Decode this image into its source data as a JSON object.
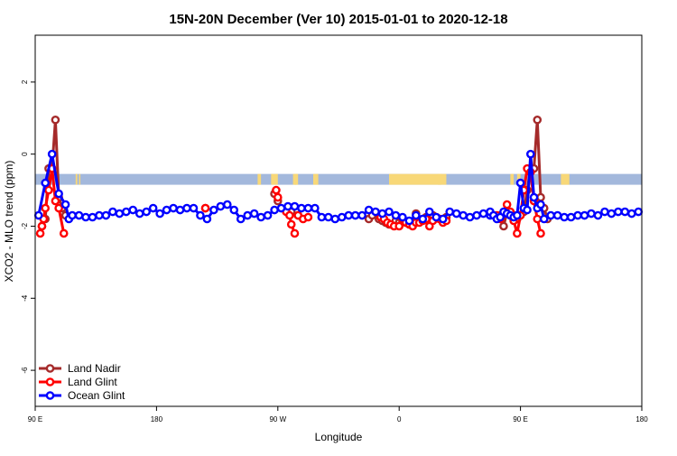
{
  "chart_data": {
    "type": "line",
    "title": "15N-20N December (Ver 10)   2015-01-01 to 2020-12-18",
    "xlabel": "Longitude",
    "ylabel": "XCO2 - MLO trend (ppm)",
    "xlim": [
      90,
      450
    ],
    "ylim": [
      -7,
      3.3
    ],
    "x_ticks": [
      {
        "value": 90,
        "label": "90 E"
      },
      {
        "value": 162,
        "label": "180"
      },
      {
        "value": 234,
        "label": "90 W"
      },
      {
        "value": 306,
        "label": "0"
      },
      {
        "value": 378,
        "label": "90 E"
      },
      {
        "value": 450,
        "label": "180"
      }
    ],
    "y_ticks": [
      {
        "value": 2,
        "label": "2"
      },
      {
        "value": 0,
        "label": "0"
      },
      {
        "value": -2,
        "label": "-2"
      },
      {
        "value": -4,
        "label": "-4"
      },
      {
        "value": -6,
        "label": "-6"
      }
    ],
    "land_band": {
      "y_range": [
        -0.85,
        -0.55
      ],
      "ocean_color": "#a3b8dc",
      "land_color": "#f8d878",
      "land_segments": [
        [
          116,
          116.8
        ],
        [
          115,
          114
        ],
        [
          222,
          224
        ],
        [
          230,
          234
        ],
        [
          243,
          245
        ],
        [
          244,
          246
        ],
        [
          255,
          258
        ],
        [
          300,
          331
        ],
        [
          329,
          334
        ],
        [
          372,
          374
        ],
        [
          376,
          378
        ],
        [
          384,
          386
        ],
        [
          402,
          407
        ]
      ]
    },
    "legend": {
      "position": "bottom-left",
      "entries": [
        {
          "name": "Land Nadir",
          "color": "#a52a2a"
        },
        {
          "name": "Land Glint",
          "color": "#ff0000"
        },
        {
          "name": "Ocean Glint",
          "color": "#0000ff"
        }
      ]
    },
    "series": [
      {
        "name": "Land Nadir",
        "color": "#a52a2a",
        "segments": [
          [
            [
              94,
              -2.0
            ],
            [
              96,
              -1.8
            ],
            [
              98,
              -0.4
            ],
            [
              100,
              -0.4
            ],
            [
              102,
              0.95
            ],
            [
              104,
              -1.2
            ],
            [
              106,
              -1.5
            ],
            [
              108,
              -1.7
            ]
          ],
          [
            [
              191,
              -1.5
            ]
          ],
          [
            [
              232,
              -1.1
            ],
            [
              234,
              -1.3
            ]
          ],
          [
            [
              242,
              -1.6
            ],
            [
              246,
              -1.7
            ]
          ],
          [
            [
              288,
              -1.8
            ],
            [
              290,
              -1.7
            ],
            [
              294,
              -1.8
            ],
            [
              296,
              -1.85
            ],
            [
              298,
              -1.9
            ],
            [
              300,
              -1.95
            ],
            [
              304,
              -1.85
            ],
            [
              306,
              -1.9
            ],
            [
              308,
              -1.85
            ],
            [
              310,
              -1.9
            ],
            [
              312,
              -1.95
            ],
            [
              314,
              -1.9
            ],
            [
              316,
              -1.65
            ],
            [
              318,
              -1.85
            ],
            [
              320,
              -1.8
            ],
            [
              322,
              -1.75
            ],
            [
              324,
              -1.9
            ],
            [
              326,
              -1.7
            ],
            [
              328,
              -1.75
            ],
            [
              330,
              -1.8
            ],
            [
              332,
              -1.8
            ],
            [
              334,
              -1.75
            ]
          ],
          [
            [
              366,
              -1.7
            ],
            [
              368,
              -2.0
            ],
            [
              370,
              -1.6
            ],
            [
              372,
              -1.7
            ],
            [
              374,
              -1.7
            ],
            [
              376,
              -1.8
            ],
            [
              378,
              -1.7
            ],
            [
              380,
              -1.6
            ],
            [
              382,
              -1.0
            ],
            [
              384,
              -0.4
            ],
            [
              386,
              -0.4
            ],
            [
              388,
              0.95
            ],
            [
              390,
              -1.2
            ],
            [
              392,
              -1.5
            ],
            [
              394,
              -1.8
            ]
          ]
        ]
      },
      {
        "name": "Land Glint",
        "color": "#ff0000",
        "segments": [
          [
            [
              93,
              -2.2
            ],
            [
              94,
              -2.0
            ],
            [
              95,
              -1.8
            ],
            [
              96,
              -1.5
            ],
            [
              98,
              -1.0
            ],
            [
              100,
              -0.4
            ],
            [
              102,
              -1.3
            ],
            [
              104,
              -1.5
            ],
            [
              107,
              -2.2
            ]
          ],
          [
            [
              191,
              -1.5
            ]
          ],
          [
            [
              233,
              -1.0
            ],
            [
              234,
              -1.2
            ]
          ],
          [
            [
              239,
              -1.6
            ],
            [
              241,
              -1.7
            ],
            [
              242,
              -1.95
            ],
            [
              244,
              -2.2
            ]
          ],
          [
            [
              246,
              -1.7
            ],
            [
              249,
              -1.8
            ],
            [
              252,
              -1.75
            ]
          ],
          [
            [
              295,
              -1.75
            ],
            [
              297,
              -1.8
            ],
            [
              299,
              -1.9
            ],
            [
              301,
              -1.95
            ],
            [
              303,
              -2.0
            ],
            [
              306,
              -2.0
            ],
            [
              308,
              -1.8
            ],
            [
              310,
              -1.9
            ],
            [
              312,
              -1.95
            ],
            [
              314,
              -2.0
            ],
            [
              316,
              -1.9
            ],
            [
              318,
              -1.9
            ],
            [
              320,
              -1.85
            ],
            [
              322,
              -1.8
            ],
            [
              324,
              -2.0
            ],
            [
              326,
              -1.85
            ],
            [
              328,
              -1.75
            ],
            [
              330,
              -1.8
            ],
            [
              332,
              -1.9
            ],
            [
              334,
              -1.85
            ]
          ],
          [
            [
              364,
              -1.7
            ],
            [
              366,
              -1.8
            ],
            [
              368,
              -1.65
            ],
            [
              370,
              -1.4
            ],
            [
              372,
              -1.6
            ],
            [
              374,
              -1.85
            ],
            [
              376,
              -2.2
            ],
            [
              378,
              -1.7
            ],
            [
              380,
              -1.0
            ],
            [
              382,
              -0.4
            ],
            [
              384,
              -0.5
            ],
            [
              386,
              -1.3
            ],
            [
              388,
              -1.8
            ],
            [
              390,
              -2.2
            ]
          ]
        ]
      },
      {
        "name": "Ocean Glint",
        "color": "#0000ff",
        "segments": [
          [
            [
              92,
              -1.7
            ],
            [
              96,
              -0.8
            ],
            [
              100,
              0.0
            ],
            [
              104,
              -1.1
            ],
            [
              108,
              -1.4
            ],
            [
              110,
              -1.8
            ],
            [
              112,
              -1.7
            ],
            [
              116,
              -1.7
            ],
            [
              120,
              -1.75
            ],
            [
              124,
              -1.75
            ],
            [
              128,
              -1.7
            ],
            [
              132,
              -1.7
            ],
            [
              136,
              -1.6
            ],
            [
              140,
              -1.65
            ],
            [
              144,
              -1.6
            ],
            [
              148,
              -1.55
            ],
            [
              152,
              -1.65
            ],
            [
              156,
              -1.6
            ],
            [
              160,
              -1.5
            ],
            [
              164,
              -1.65
            ],
            [
              168,
              -1.55
            ],
            [
              172,
              -1.5
            ],
            [
              176,
              -1.55
            ],
            [
              180,
              -1.5
            ],
            [
              184,
              -1.5
            ],
            [
              188,
              -1.7
            ],
            [
              192,
              -1.8
            ],
            [
              196,
              -1.55
            ],
            [
              200,
              -1.45
            ],
            [
              204,
              -1.4
            ],
            [
              208,
              -1.55
            ],
            [
              212,
              -1.8
            ],
            [
              216,
              -1.7
            ],
            [
              220,
              -1.65
            ],
            [
              224,
              -1.75
            ],
            [
              228,
              -1.7
            ],
            [
              232,
              -1.55
            ],
            [
              236,
              -1.5
            ],
            [
              240,
              -1.45
            ],
            [
              244,
              -1.45
            ],
            [
              248,
              -1.5
            ],
            [
              252,
              -1.5
            ],
            [
              256,
              -1.5
            ],
            [
              260,
              -1.75
            ],
            [
              264,
              -1.75
            ],
            [
              268,
              -1.8
            ],
            [
              272,
              -1.75
            ],
            [
              276,
              -1.7
            ],
            [
              280,
              -1.7
            ],
            [
              284,
              -1.7
            ],
            [
              288,
              -1.55
            ],
            [
              292,
              -1.6
            ],
            [
              296,
              -1.65
            ],
            [
              300,
              -1.6
            ],
            [
              304,
              -1.7
            ],
            [
              308,
              -1.75
            ],
            [
              312,
              -1.85
            ],
            [
              316,
              -1.7
            ],
            [
              320,
              -1.8
            ],
            [
              324,
              -1.6
            ],
            [
              328,
              -1.75
            ],
            [
              332,
              -1.8
            ],
            [
              336,
              -1.6
            ],
            [
              340,
              -1.65
            ],
            [
              344,
              -1.7
            ],
            [
              348,
              -1.75
            ],
            [
              352,
              -1.7
            ],
            [
              356,
              -1.65
            ],
            [
              360,
              -1.7
            ]
          ],
          [
            [
              360,
              -1.6
            ],
            [
              362,
              -1.7
            ],
            [
              364,
              -1.8
            ],
            [
              366,
              -1.75
            ],
            [
              368,
              -1.6
            ],
            [
              370,
              -1.65
            ],
            [
              372,
              -1.7
            ],
            [
              374,
              -1.75
            ],
            [
              376,
              -1.7
            ],
            [
              378,
              -0.8
            ],
            [
              380,
              -1.5
            ],
            [
              382,
              -1.55
            ],
            [
              384,
              -0.0
            ],
            [
              386,
              -1.2
            ],
            [
              388,
              -1.5
            ],
            [
              390,
              -1.4
            ],
            [
              392,
              -1.8
            ],
            [
              396,
              -1.7
            ],
            [
              400,
              -1.7
            ],
            [
              404,
              -1.75
            ],
            [
              408,
              -1.75
            ],
            [
              412,
              -1.7
            ],
            [
              416,
              -1.7
            ],
            [
              420,
              -1.65
            ],
            [
              424,
              -1.7
            ],
            [
              428,
              -1.6
            ],
            [
              432,
              -1.65
            ],
            [
              436,
              -1.6
            ],
            [
              440,
              -1.6
            ],
            [
              444,
              -1.65
            ],
            [
              448,
              -1.6
            ]
          ]
        ]
      }
    ]
  }
}
